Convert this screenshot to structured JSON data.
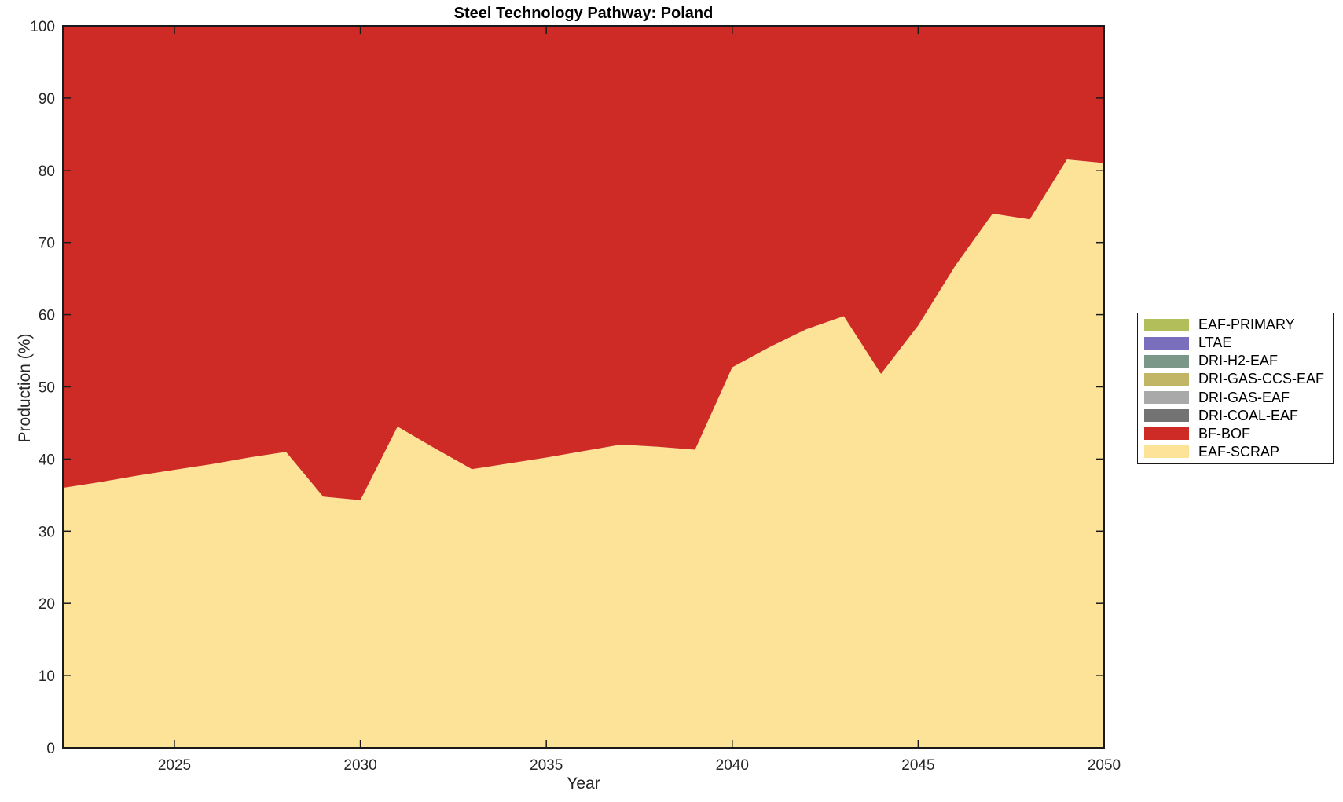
{
  "title": "Steel Technology Pathway: Poland",
  "xlabel": "Year",
  "ylabel": "Production (%)",
  "axis_color": "#1a1a1a",
  "tick_label_color": "#262626",
  "legend": {
    "position": "right-outside",
    "items": [
      {
        "label": "EAF-PRIMARY",
        "color": "#b2be59"
      },
      {
        "label": "LTAE",
        "color": "#7a6fbc"
      },
      {
        "label": "DRI-H2-EAF",
        "color": "#7b9787"
      },
      {
        "label": "DRI-GAS-CCS-EAF",
        "color": "#c1b566"
      },
      {
        "label": "DRI-GAS-EAF",
        "color": "#a9a9a9"
      },
      {
        "label": "DRI-COAL-EAF",
        "color": "#737373"
      },
      {
        "label": "BF-BOF",
        "color": "#ce2a26"
      },
      {
        "label": "EAF-SCRAP",
        "color": "#fde398"
      }
    ]
  },
  "chart_data": {
    "type": "area",
    "stacked": true,
    "title": "Steel Technology Pathway: Poland",
    "xlabel": "Year",
    "ylabel": "Production (%)",
    "xlim": [
      2022,
      2050
    ],
    "ylim": [
      0,
      100
    ],
    "xticks": [
      2025,
      2030,
      2035,
      2040,
      2045,
      2050
    ],
    "yticks": [
      0,
      10,
      20,
      30,
      40,
      50,
      60,
      70,
      80,
      90,
      100
    ],
    "grid": false,
    "box": true,
    "x": [
      2022,
      2023,
      2024,
      2025,
      2026,
      2027,
      2028,
      2029,
      2030,
      2031,
      2032,
      2033,
      2034,
      2035,
      2036,
      2037,
      2038,
      2039,
      2040,
      2041,
      2042,
      2043,
      2044,
      2045,
      2046,
      2047,
      2048,
      2049,
      2050
    ],
    "stacking_order_note": "series listed bottom-to-top of the stack; legend shows reverse order",
    "series": [
      {
        "name": "EAF-SCRAP",
        "color": "#fde398",
        "values": [
          36.0,
          36.8,
          37.7,
          38.5,
          39.3,
          40.2,
          41.0,
          34.8,
          34.3,
          44.5,
          41.5,
          38.6,
          39.4,
          40.2,
          41.1,
          42.0,
          41.7,
          41.3,
          52.7,
          55.5,
          58.0,
          59.8,
          51.8,
          58.5,
          66.8,
          74.0,
          73.2,
          81.5,
          81.0
        ]
      },
      {
        "name": "BF-BOF",
        "color": "#ce2a26",
        "values": [
          64.0,
          63.2,
          62.3,
          61.5,
          60.7,
          59.8,
          59.0,
          65.2,
          65.7,
          55.5,
          58.5,
          61.4,
          60.6,
          59.8,
          58.9,
          58.0,
          58.3,
          58.7,
          47.3,
          44.5,
          42.0,
          40.2,
          48.2,
          41.5,
          33.2,
          26.0,
          26.8,
          18.5,
          19.0
        ]
      },
      {
        "name": "DRI-COAL-EAF",
        "color": "#737373",
        "values": [
          0,
          0,
          0,
          0,
          0,
          0,
          0,
          0,
          0,
          0,
          0,
          0,
          0,
          0,
          0,
          0,
          0,
          0,
          0,
          0,
          0,
          0,
          0,
          0,
          0,
          0,
          0,
          0,
          0
        ]
      },
      {
        "name": "DRI-GAS-EAF",
        "color": "#a9a9a9",
        "values": [
          0,
          0,
          0,
          0,
          0,
          0,
          0,
          0,
          0,
          0,
          0,
          0,
          0,
          0,
          0,
          0,
          0,
          0,
          0,
          0,
          0,
          0,
          0,
          0,
          0,
          0,
          0,
          0,
          0
        ]
      },
      {
        "name": "DRI-GAS-CCS-EAF",
        "color": "#c1b566",
        "values": [
          0,
          0,
          0,
          0,
          0,
          0,
          0,
          0,
          0,
          0,
          0,
          0,
          0,
          0,
          0,
          0,
          0,
          0,
          0,
          0,
          0,
          0,
          0,
          0,
          0,
          0,
          0,
          0,
          0
        ]
      },
      {
        "name": "DRI-H2-EAF",
        "color": "#7b9787",
        "values": [
          0,
          0,
          0,
          0,
          0,
          0,
          0,
          0,
          0,
          0,
          0,
          0,
          0,
          0,
          0,
          0,
          0,
          0,
          0,
          0,
          0,
          0,
          0,
          0,
          0,
          0,
          0,
          0,
          0
        ]
      },
      {
        "name": "LTAE",
        "color": "#7a6fbc",
        "values": [
          0,
          0,
          0,
          0,
          0,
          0,
          0,
          0,
          0,
          0,
          0,
          0,
          0,
          0,
          0,
          0,
          0,
          0,
          0,
          0,
          0,
          0,
          0,
          0,
          0,
          0,
          0,
          0,
          0
        ]
      },
      {
        "name": "EAF-PRIMARY",
        "color": "#b2be59",
        "values": [
          0,
          0,
          0,
          0,
          0,
          0,
          0,
          0,
          0,
          0,
          0,
          0,
          0,
          0,
          0,
          0,
          0,
          0,
          0,
          0,
          0,
          0,
          0,
          0,
          0,
          0,
          0,
          0,
          0
        ]
      }
    ]
  }
}
